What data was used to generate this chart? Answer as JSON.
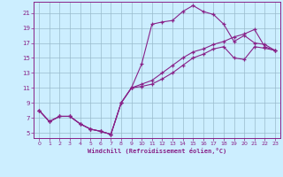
{
  "xlabel": "Windchill (Refroidissement éolien,°C)",
  "bg_color": "#cceeff",
  "line_color": "#882288",
  "grid_color": "#99bbcc",
  "xlim": [
    -0.5,
    23.5
  ],
  "ylim": [
    4.3,
    22.5
  ],
  "xticks": [
    0,
    1,
    2,
    3,
    4,
    5,
    6,
    7,
    8,
    9,
    10,
    11,
    12,
    13,
    14,
    15,
    16,
    17,
    18,
    19,
    20,
    21,
    22,
    23
  ],
  "yticks": [
    5,
    7,
    9,
    11,
    13,
    15,
    17,
    19,
    21
  ],
  "line1_x": [
    0,
    1,
    2,
    3,
    4,
    5,
    6,
    7,
    8,
    9,
    10,
    11,
    12,
    13,
    14,
    15,
    16,
    17,
    18,
    19,
    20,
    21,
    22,
    23
  ],
  "line1_y": [
    8.0,
    6.5,
    7.2,
    7.2,
    6.2,
    5.5,
    5.2,
    4.8,
    9.0,
    11.0,
    14.2,
    19.5,
    19.8,
    20.0,
    21.2,
    22.0,
    21.2,
    20.8,
    19.5,
    17.2,
    18.0,
    17.0,
    16.8,
    16.0
  ],
  "line2_x": [
    0,
    1,
    2,
    3,
    4,
    5,
    6,
    7,
    8,
    9,
    10,
    11,
    12,
    13,
    14,
    15,
    16,
    17,
    18,
    19,
    20,
    21,
    22,
    23
  ],
  "line2_y": [
    8.0,
    6.5,
    7.2,
    7.2,
    6.2,
    5.5,
    5.2,
    4.8,
    9.0,
    11.0,
    11.5,
    12.0,
    13.0,
    14.0,
    15.0,
    15.8,
    16.2,
    16.8,
    17.2,
    17.8,
    18.2,
    18.8,
    16.5,
    16.0
  ],
  "line3_x": [
    0,
    1,
    2,
    3,
    4,
    5,
    6,
    7,
    8,
    9,
    10,
    11,
    12,
    13,
    14,
    15,
    16,
    17,
    18,
    19,
    20,
    21,
    22,
    23
  ],
  "line3_y": [
    8.0,
    6.5,
    7.2,
    7.2,
    6.2,
    5.5,
    5.2,
    4.8,
    9.0,
    11.0,
    11.2,
    11.5,
    12.2,
    13.0,
    14.0,
    15.0,
    15.5,
    16.2,
    16.5,
    15.0,
    14.8,
    16.5,
    16.3,
    16.0
  ]
}
